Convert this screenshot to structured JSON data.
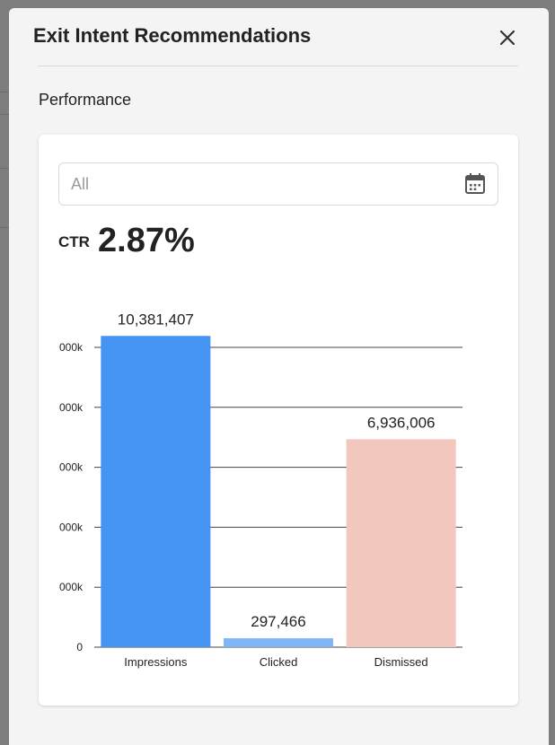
{
  "modal": {
    "title": "Exit Intent Recommendations",
    "section_label": "Performance"
  },
  "filter": {
    "date_value": "All"
  },
  "metric": {
    "label": "CTR",
    "value": "2.87%"
  },
  "icons": {
    "close": "close-icon",
    "calendar": "calendar-icon"
  },
  "chart_data": {
    "type": "bar",
    "categories": [
      "Impressions",
      "Clicked",
      "Dismissed"
    ],
    "values": [
      10381407,
      297466,
      6936006
    ],
    "value_labels": [
      "10,381,407",
      "297,466",
      "6,936,006"
    ],
    "colors": [
      "#4594f3",
      "#80b6f7",
      "#f2c8be"
    ],
    "ytick_labels": [
      "0",
      "000k",
      "000k",
      "000k",
      "000k",
      "000k"
    ],
    "yticks": [
      0,
      2000000,
      4000000,
      6000000,
      8000000,
      10000000
    ],
    "ylim": [
      0,
      10000000
    ],
    "grid": true,
    "title": "",
    "xlabel": "",
    "ylabel": ""
  }
}
